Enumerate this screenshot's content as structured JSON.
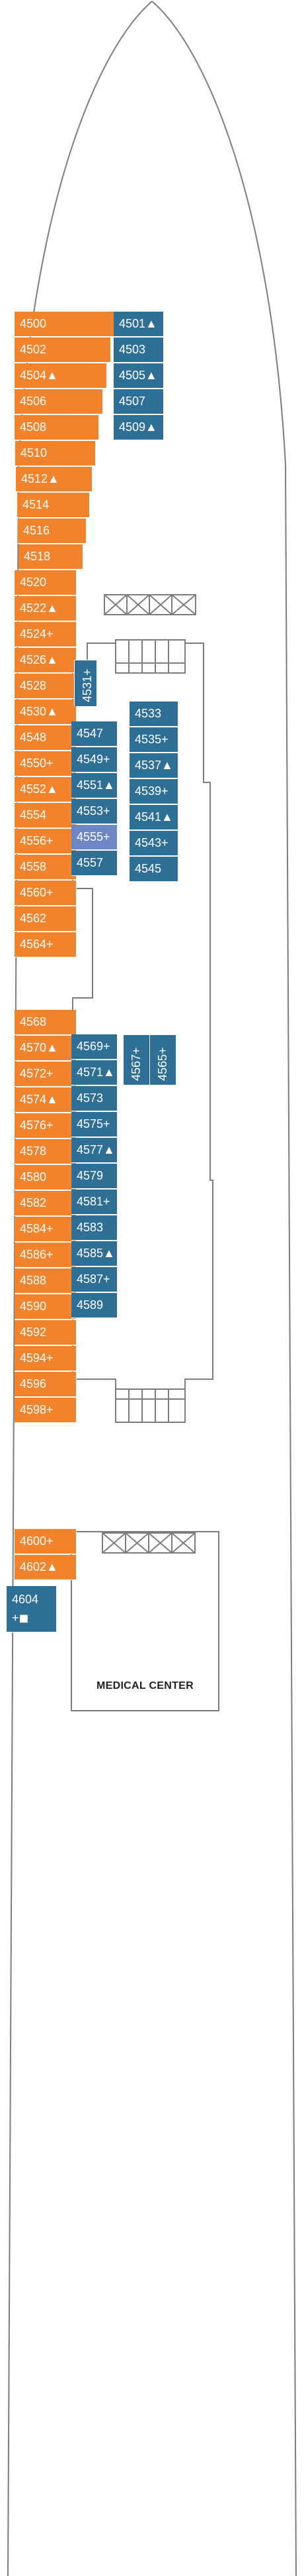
{
  "colors": {
    "cabin_orange": "#f0832b",
    "cabin_blue": "#2f6f96",
    "cabin_lilac": "#6d87c6",
    "outline": "#7d7d7d"
  },
  "facility": {
    "medical_center": "MEDICAL CENTER"
  },
  "starboard_cabins": [
    "4500",
    "4502",
    "4504▲",
    "4506",
    "4508",
    "4510",
    "4512▲",
    "4514",
    "4516",
    "4518",
    "4520",
    "4522▲",
    "4524+",
    "4526▲",
    "4528",
    "4530▲",
    "4548",
    "4550+",
    "4552▲",
    "4554",
    "4556+",
    "4558",
    "4560+",
    "4562",
    "4564+",
    "4568",
    "4570▲",
    "4572+",
    "4574▲",
    "4576+",
    "4578",
    "4580",
    "4582",
    "4584+",
    "4586+",
    "4588",
    "4590",
    "4592",
    "4594+",
    "4596",
    "4598+",
    "4600+",
    "4602▲"
  ],
  "forward_cabins": [
    "4501▲",
    "4503",
    "4505▲",
    "4507",
    "4509▲"
  ],
  "inner_cabins": {
    "vertical": [
      "4531+",
      "4567+",
      "4565+"
    ],
    "left_column_fwd": [
      "4547",
      "4549+",
      "4551▲",
      "4553+",
      "4555+",
      "4557"
    ],
    "right_column_fwd": [
      "4533",
      "4535+",
      "4537▲",
      "4539+",
      "4541▲",
      "4543+",
      "4545"
    ],
    "left_column_aft": [
      "4569+",
      "4571▲",
      "4573",
      "4575+",
      "4577▲",
      "4579",
      "4581+",
      "4583",
      "4585▲",
      "4587+",
      "4589"
    ]
  },
  "aft_cabin": {
    "number": "4604",
    "suffix": "+◼"
  }
}
